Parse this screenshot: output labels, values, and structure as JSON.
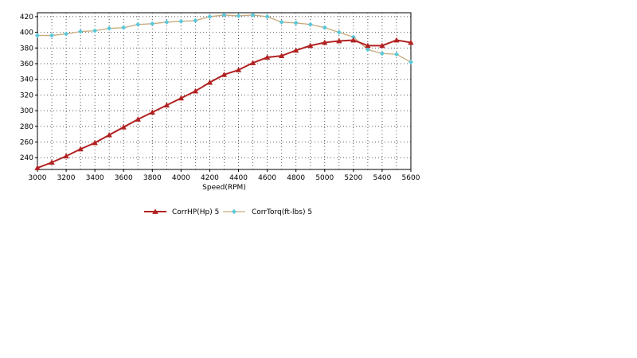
{
  "chart_data": {
    "type": "line",
    "xlabel": "Speed(RPM)",
    "ylabel": "",
    "xlim": [
      3000,
      5600
    ],
    "ylim": [
      225,
      425
    ],
    "x_ticks": [
      3000,
      3200,
      3400,
      3600,
      3800,
      4000,
      4200,
      4400,
      4600,
      4800,
      5000,
      5200,
      5400,
      5600
    ],
    "y_ticks": [
      240,
      260,
      280,
      300,
      320,
      340,
      360,
      380,
      400,
      420
    ],
    "grid": true,
    "legend_position": "bottom",
    "x": [
      3000,
      3100,
      3200,
      3300,
      3400,
      3500,
      3600,
      3700,
      3800,
      3900,
      4000,
      4100,
      4200,
      4300,
      4400,
      4500,
      4600,
      4700,
      4800,
      4900,
      5000,
      5100,
      5200,
      5300,
      5400,
      5500,
      5600
    ],
    "series": [
      {
        "name": "CorrHP(Hp) 5",
        "color": "#b22222",
        "marker": "triangle",
        "values": [
          227,
          234,
          242,
          251,
          259,
          269,
          279,
          289,
          298,
          307,
          316,
          325,
          336,
          346,
          352,
          361,
          368,
          370,
          377,
          383,
          387,
          389,
          390,
          383,
          383,
          390,
          387
        ]
      },
      {
        "name": "CorrTorq(ft-lbs) 5",
        "color": "#5bc8d8",
        "line_color": "#c8a97a",
        "marker": "diamond",
        "values": [
          396,
          396,
          398,
          401,
          402,
          405,
          406,
          410,
          411,
          413,
          414,
          415,
          420,
          422,
          421,
          422,
          420,
          413,
          412,
          410,
          406,
          400,
          394,
          378,
          373,
          372,
          362
        ]
      }
    ]
  }
}
